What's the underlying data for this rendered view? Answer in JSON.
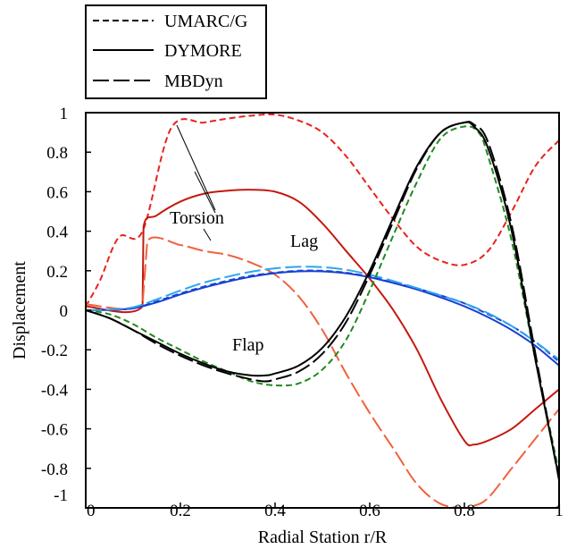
{
  "chart_data": {
    "type": "line",
    "xlabel": "Radial Station r/R",
    "ylabel": "Displacement",
    "xlim": [
      0,
      1
    ],
    "ylim": [
      -1,
      1
    ],
    "xticks": [
      0,
      0.2,
      0.4,
      0.6,
      0.8,
      1
    ],
    "xtick_labels": [
      "0",
      "0.2",
      "0.4",
      "0.6",
      "0.8",
      "1"
    ],
    "yticks": [
      -1,
      -0.8,
      -0.6,
      -0.4,
      -0.2,
      0,
      0.2,
      0.4,
      0.6,
      0.8,
      1
    ],
    "ytick_labels": [
      "-1",
      "-0.8",
      "-0.6",
      "-0.4",
      "-0.2",
      "0",
      "0.2",
      "0.4",
      "0.6",
      "0.8",
      "1"
    ],
    "grid": false,
    "legend": {
      "placement": "top-left, above plot",
      "entries": [
        {
          "label": "UMARC/G",
          "dash": "short-dash"
        },
        {
          "label": "DYMORE",
          "dash": "solid"
        },
        {
          "label": "MBDyn",
          "dash": "long-dash"
        }
      ]
    },
    "annotations": [
      {
        "text": "Torsion",
        "x": 0.25,
        "y": 0.43
      },
      {
        "text": "Lag",
        "x": 0.46,
        "y": 0.25
      },
      {
        "text": "Flap",
        "x": 0.35,
        "y": -0.25
      }
    ],
    "series": [
      {
        "group": "Torsion",
        "method": "UMARC/G",
        "color": "#e8221c",
        "dash": "short-dash",
        "x": [
          0,
          0.03,
          0.07,
          0.12,
          0.18,
          0.25,
          0.3,
          0.35,
          0.4,
          0.45,
          0.5,
          0.55,
          0.6,
          0.65,
          0.7,
          0.75,
          0.8,
          0.85,
          0.9,
          0.95,
          1
        ],
        "y": [
          0.02,
          0.15,
          0.37,
          0.4,
          0.92,
          0.95,
          0.97,
          0.985,
          0.99,
          0.96,
          0.9,
          0.78,
          0.62,
          0.46,
          0.32,
          0.25,
          0.23,
          0.3,
          0.5,
          0.73,
          0.86
        ]
      },
      {
        "group": "Torsion",
        "method": "DYMORE",
        "color": "#c4190f",
        "dash": "solid",
        "x": [
          0,
          0.12,
          0.122,
          0.15,
          0.2,
          0.25,
          0.3,
          0.35,
          0.4,
          0.45,
          0.5,
          0.55,
          0.6,
          0.65,
          0.7,
          0.75,
          0.8,
          0.82,
          0.85,
          0.9,
          0.95,
          1
        ],
        "y": [
          0.02,
          0.02,
          0.42,
          0.48,
          0.55,
          0.59,
          0.605,
          0.61,
          0.6,
          0.55,
          0.44,
          0.3,
          0.16,
          0.0,
          -0.2,
          -0.45,
          -0.66,
          -0.68,
          -0.66,
          -0.6,
          -0.5,
          -0.4
        ]
      },
      {
        "group": "Torsion",
        "method": "MBDyn",
        "color": "#f0623c",
        "dash": "long-dash",
        "x": [
          0,
          0.12,
          0.13,
          0.2,
          0.25,
          0.3,
          0.35,
          0.4,
          0.45,
          0.5,
          0.55,
          0.6,
          0.65,
          0.7,
          0.75,
          0.8,
          0.82,
          0.85,
          0.9,
          0.95,
          1
        ],
        "y": [
          0.03,
          0.03,
          0.35,
          0.33,
          0.3,
          0.28,
          0.24,
          0.18,
          0.07,
          -0.1,
          -0.32,
          -0.52,
          -0.7,
          -0.88,
          -0.98,
          -1.0,
          -0.99,
          -0.95,
          -0.8,
          -0.65,
          -0.5
        ]
      },
      {
        "group": "Lag",
        "method": "UMARC/G",
        "color": "#1a45c8",
        "dash": "short-dash",
        "x": [
          0,
          0.05,
          0.1,
          0.15,
          0.2,
          0.25,
          0.3,
          0.35,
          0.4,
          0.45,
          0.5,
          0.55,
          0.6,
          0.65,
          0.7,
          0.75,
          0.8,
          0.85,
          0.9,
          0.95,
          1
        ],
        "y": [
          0,
          0.002,
          0.01,
          0.045,
          0.085,
          0.12,
          0.15,
          0.175,
          0.19,
          0.2,
          0.2,
          0.19,
          0.17,
          0.14,
          0.11,
          0.075,
          0.035,
          -0.02,
          -0.08,
          -0.16,
          -0.26
        ]
      },
      {
        "group": "Lag",
        "method": "DYMORE",
        "color": "#1a3fd6",
        "dash": "solid",
        "x": [
          0,
          0.05,
          0.1,
          0.15,
          0.2,
          0.25,
          0.3,
          0.35,
          0.4,
          0.45,
          0.5,
          0.55,
          0.6,
          0.65,
          0.7,
          0.75,
          0.8,
          0.85,
          0.9,
          0.95,
          1
        ],
        "y": [
          0,
          0.002,
          0.01,
          0.04,
          0.08,
          0.115,
          0.145,
          0.17,
          0.188,
          0.197,
          0.197,
          0.187,
          0.167,
          0.138,
          0.105,
          0.065,
          0.02,
          -0.035,
          -0.1,
          -0.18,
          -0.28
        ]
      },
      {
        "group": "Lag",
        "method": "MBDyn",
        "color": "#2aa6f0",
        "dash": "long-dash",
        "x": [
          0,
          0.05,
          0.1,
          0.15,
          0.2,
          0.25,
          0.3,
          0.35,
          0.4,
          0.45,
          0.5,
          0.55,
          0.6,
          0.65,
          0.7,
          0.75,
          0.8,
          0.85,
          0.9,
          0.95,
          1
        ],
        "y": [
          0,
          0.003,
          0.015,
          0.055,
          0.1,
          0.14,
          0.17,
          0.195,
          0.212,
          0.22,
          0.218,
          0.205,
          0.18,
          0.148,
          0.112,
          0.075,
          0.035,
          -0.015,
          -0.08,
          -0.16,
          -0.25
        ]
      },
      {
        "group": "Flap",
        "method": "UMARC/G",
        "color": "#1f8a1f",
        "dash": "short-dash",
        "x": [
          0,
          0.05,
          0.1,
          0.15,
          0.2,
          0.25,
          0.3,
          0.35,
          0.4,
          0.45,
          0.5,
          0.55,
          0.6,
          0.65,
          0.7,
          0.75,
          0.8,
          0.83,
          0.85,
          0.9,
          0.95,
          1
        ],
        "y": [
          0,
          -0.02,
          -0.07,
          -0.14,
          -0.2,
          -0.26,
          -0.31,
          -0.36,
          -0.38,
          -0.37,
          -0.3,
          -0.15,
          0.1,
          0.38,
          0.65,
          0.87,
          0.93,
          0.9,
          0.78,
          0.35,
          -0.25,
          -0.82
        ]
      },
      {
        "group": "Flap",
        "method": "DYMORE",
        "color": "#000000",
        "dash": "solid",
        "x": [
          0,
          0.05,
          0.1,
          0.15,
          0.2,
          0.25,
          0.3,
          0.35,
          0.38,
          0.4,
          0.45,
          0.5,
          0.55,
          0.6,
          0.65,
          0.7,
          0.75,
          0.8,
          0.82,
          0.85,
          0.9,
          0.95,
          1
        ],
        "y": [
          0,
          -0.04,
          -0.1,
          -0.16,
          -0.22,
          -0.27,
          -0.31,
          -0.33,
          -0.33,
          -0.32,
          -0.28,
          -0.19,
          -0.03,
          0.2,
          0.47,
          0.73,
          0.9,
          0.95,
          0.93,
          0.82,
          0.4,
          -0.25,
          -0.85
        ]
      },
      {
        "group": "Flap",
        "method": "MBDyn",
        "color": "#000000",
        "dash": "long-dash",
        "x": [
          0,
          0.05,
          0.1,
          0.15,
          0.2,
          0.25,
          0.3,
          0.35,
          0.38,
          0.4,
          0.45,
          0.5,
          0.55,
          0.6,
          0.65,
          0.7,
          0.75,
          0.8,
          0.82,
          0.85,
          0.9,
          0.95,
          1
        ],
        "y": [
          0,
          -0.04,
          -0.1,
          -0.17,
          -0.23,
          -0.28,
          -0.32,
          -0.35,
          -0.36,
          -0.35,
          -0.31,
          -0.22,
          -0.06,
          0.18,
          0.45,
          0.72,
          0.9,
          0.95,
          0.94,
          0.85,
          0.43,
          -0.22,
          -0.86
        ]
      }
    ]
  }
}
